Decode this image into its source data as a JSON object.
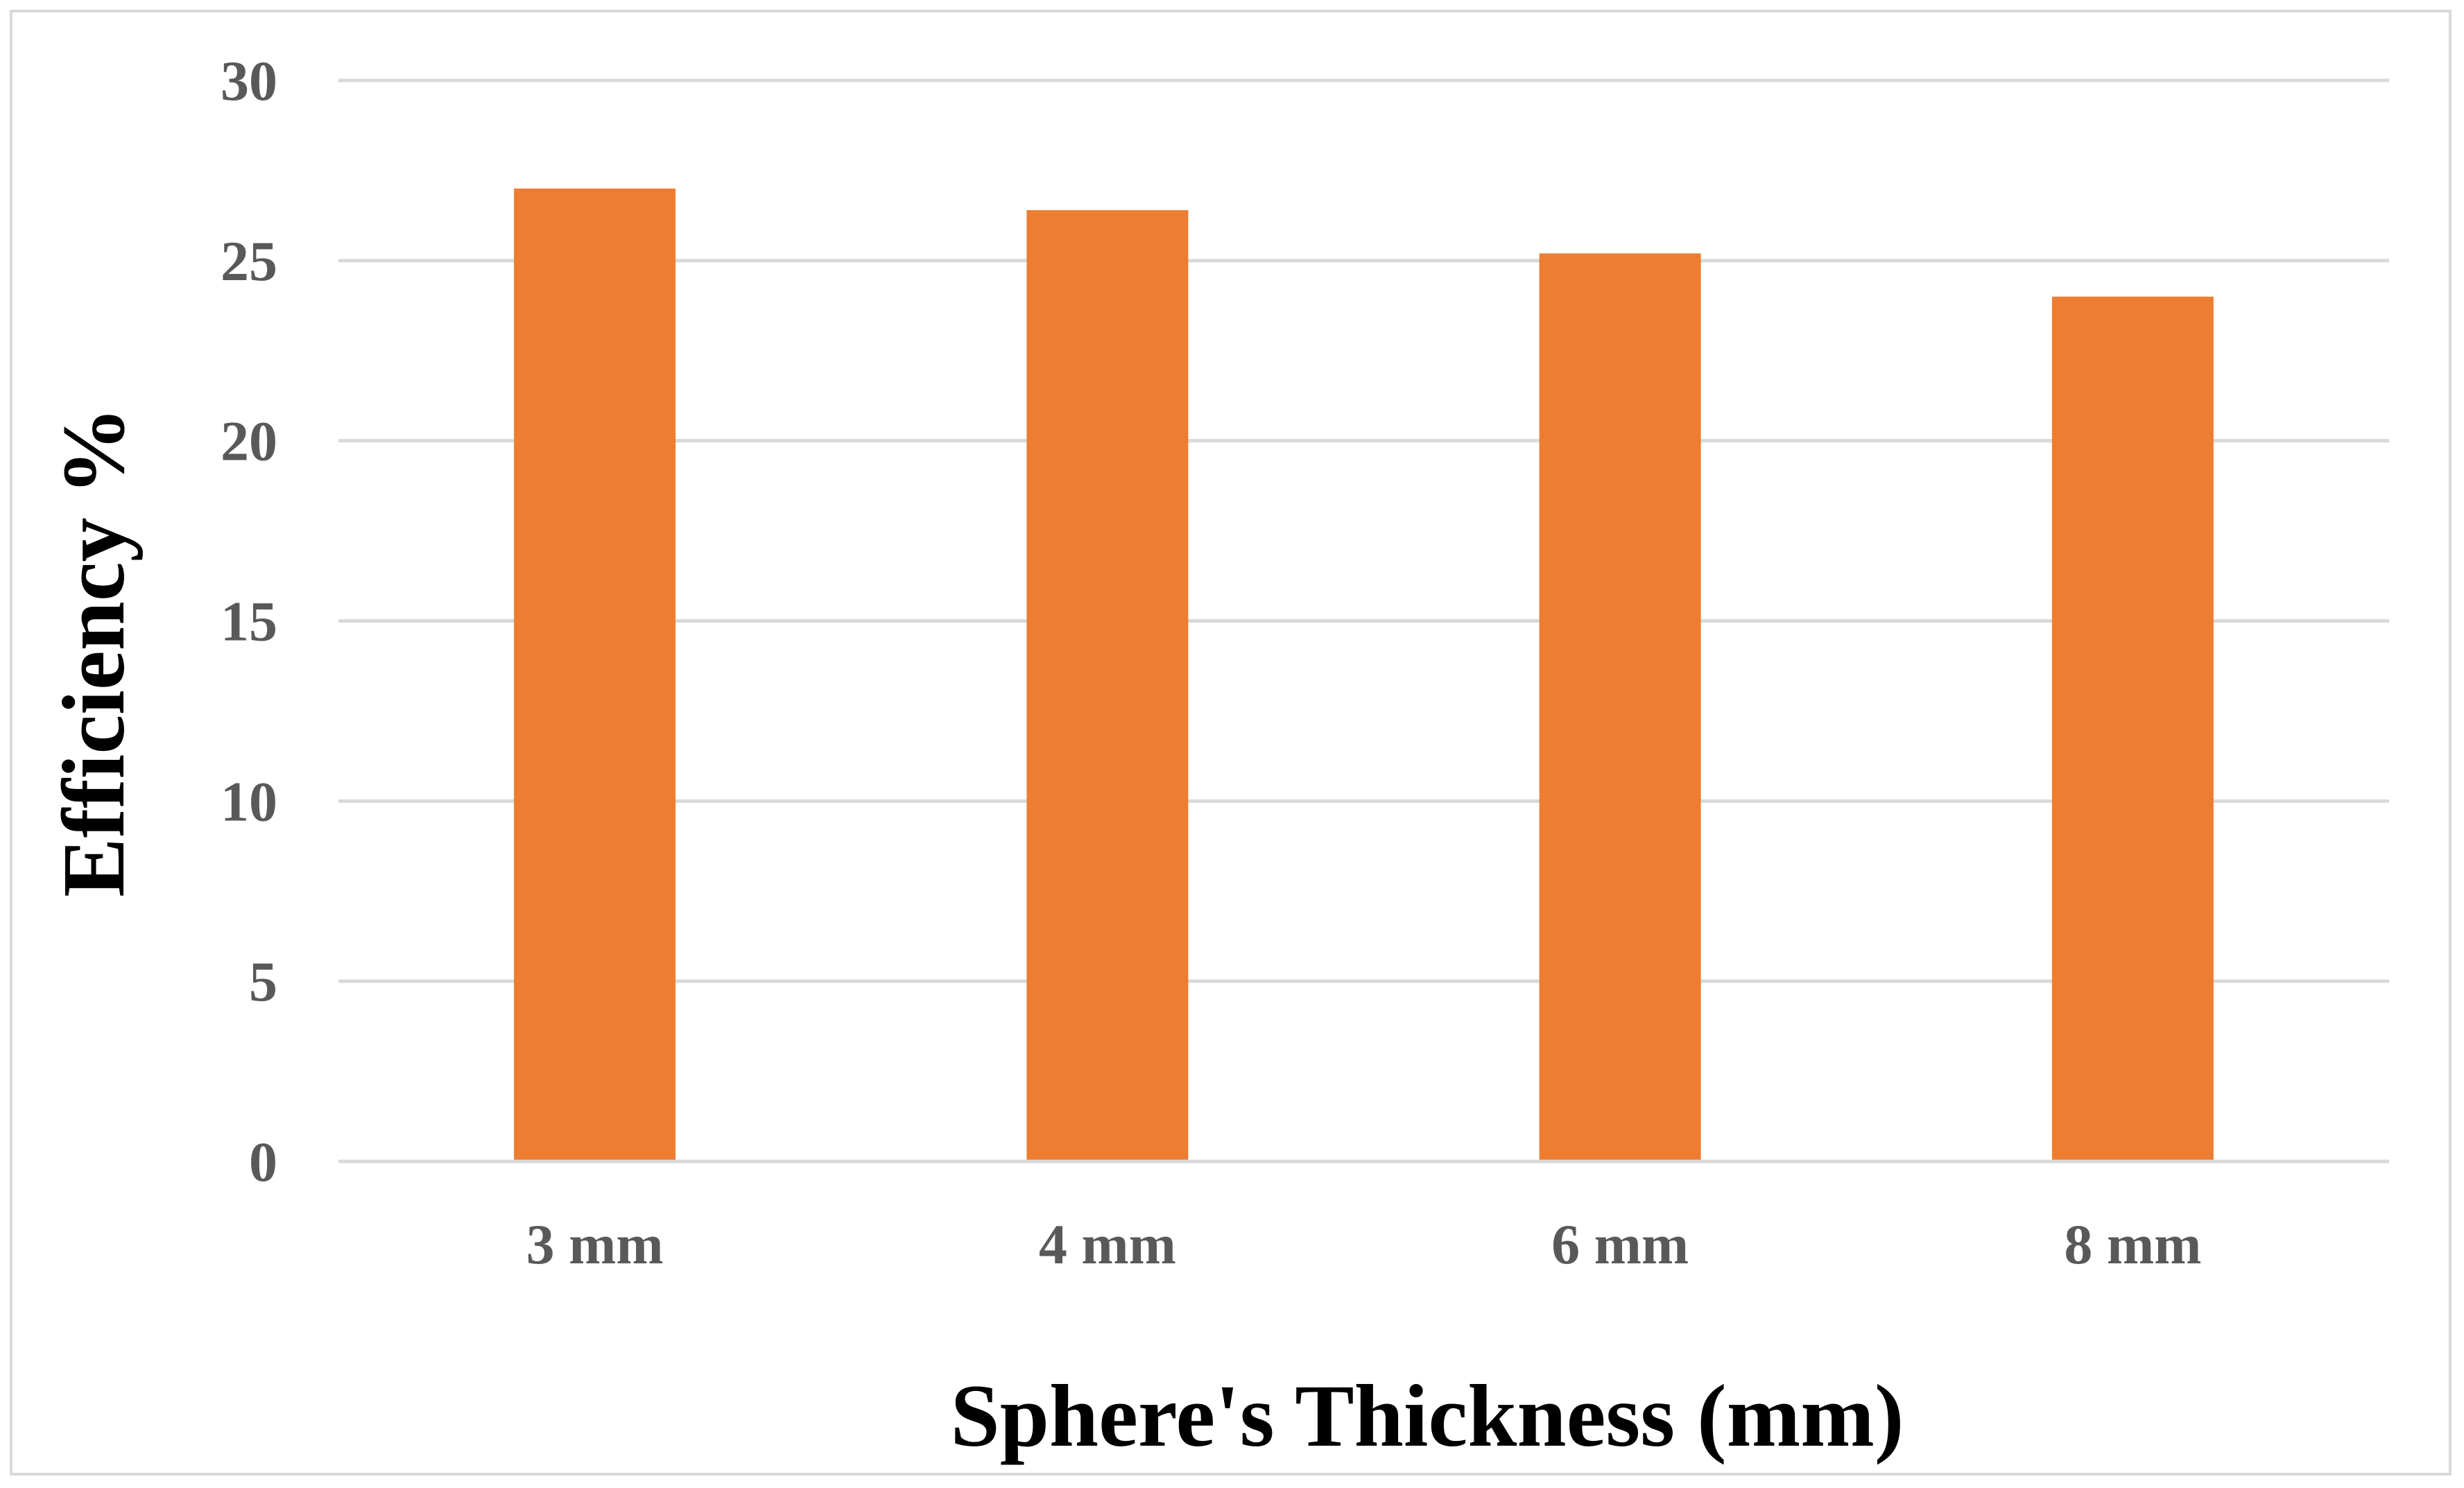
{
  "chart_data": {
    "type": "bar",
    "categories": [
      "3 mm",
      "4 mm",
      "6 mm",
      "8 mm"
    ],
    "series": [
      {
        "values": [
          27.0,
          26.4,
          25.2,
          24.0
        ]
      }
    ],
    "xlabel": "Sphere's Thickness (mm)",
    "ylabel": "Efficiency %",
    "ylim": [
      0,
      30
    ],
    "yticks": [
      0,
      5,
      10,
      15,
      20,
      25,
      30
    ],
    "grid": true,
    "legend": "none",
    "colors": {
      "bar": "#ED7D31",
      "grid": "#d9d9d9",
      "tick_text": "#595959",
      "title_text": "#000000"
    }
  }
}
